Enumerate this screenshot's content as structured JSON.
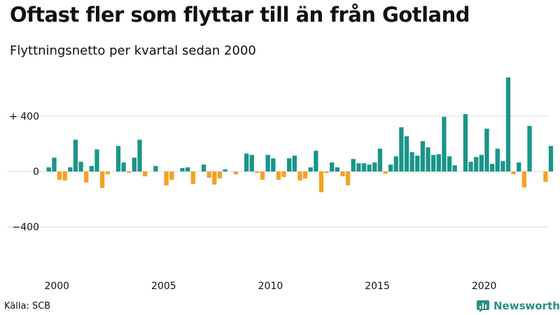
{
  "header": {
    "title": "Oftast fler som flyttar till än från Gotland",
    "subtitle": "Flyttningsnetto per kvartal sedan 2000"
  },
  "footer": {
    "source": "Källa: SCB",
    "brand": "Newsworthy"
  },
  "colors": {
    "positive": "#1a958a",
    "negative": "#f5a123",
    "grid": "#d9d9d9",
    "brand": "#2a8f89"
  },
  "chart_data": {
    "type": "bar",
    "xlabel": "",
    "ylabel": "",
    "ylim": [
      -600,
      700
    ],
    "x_ticks": [
      {
        "year": 2000,
        "label": "2000"
      },
      {
        "year": 2005,
        "label": "2005"
      },
      {
        "year": 2010,
        "label": "2010"
      },
      {
        "year": 2015,
        "label": "2015"
      },
      {
        "year": 2020,
        "label": "2020"
      }
    ],
    "y_ticks": [
      {
        "value": 400,
        "label": "+ 400"
      },
      {
        "value": 0,
        "label": "0"
      },
      {
        "value": -400,
        "label": "−400"
      }
    ],
    "grid": true,
    "legend": "none",
    "start": "2000 Q1",
    "values": [
      30,
      100,
      -60,
      -65,
      30,
      230,
      70,
      -80,
      40,
      160,
      -120,
      -20,
      0,
      185,
      65,
      -10,
      100,
      230,
      -35,
      0,
      40,
      0,
      -100,
      -60,
      0,
      25,
      30,
      -90,
      0,
      50,
      -45,
      -95,
      -50,
      15,
      0,
      -20,
      0,
      130,
      120,
      -10,
      -60,
      120,
      95,
      -60,
      -40,
      95,
      115,
      -65,
      -50,
      30,
      150,
      -150,
      -10,
      65,
      30,
      -35,
      -100,
      90,
      60,
      60,
      50,
      65,
      165,
      -15,
      50,
      110,
      320,
      255,
      140,
      115,
      220,
      175,
      120,
      125,
      395,
      110,
      45,
      0,
      415,
      70,
      105,
      120,
      310,
      55,
      165,
      75,
      680,
      -20,
      65,
      -115,
      330,
      0,
      0,
      -75,
      185
    ]
  }
}
